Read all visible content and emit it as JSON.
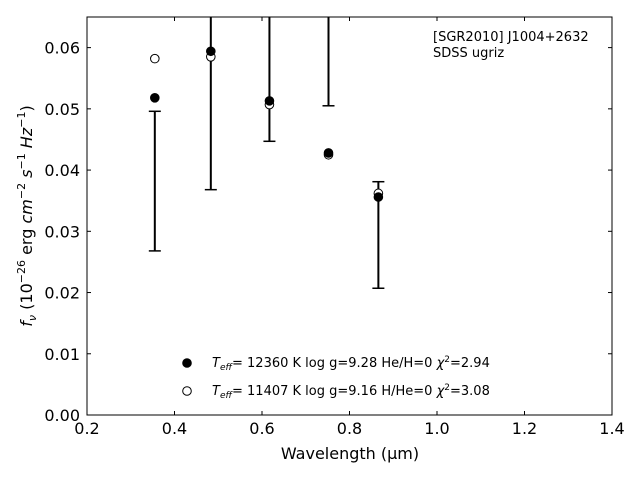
{
  "chart_data": {
    "type": "scatter",
    "title": "",
    "xlabel": "Wavelength (μm)",
    "ylabel": "f_ν (10^-26 erg cm^-2 s^-1 Hz^-1)",
    "xlim": [
      0.2,
      1.4
    ],
    "ylim": [
      0.0,
      0.065
    ],
    "x_ticks": [
      0.2,
      0.4,
      0.6,
      0.8,
      1.0,
      1.2,
      1.4
    ],
    "x_tick_labels": [
      "0.2",
      "0.4",
      "0.6",
      "0.8",
      "1.0",
      "1.2",
      "1.4"
    ],
    "y_ticks": [
      0.0,
      0.01,
      0.02,
      0.03,
      0.04,
      0.05,
      0.06
    ],
    "y_tick_labels": [
      "0.00",
      "0.01",
      "0.02",
      "0.03",
      "0.04",
      "0.05",
      "0.06"
    ],
    "grid": false,
    "annotation": {
      "line1": "[SGR2010] J1004+2632",
      "line2": "SDSS ugriz"
    },
    "observed": {
      "x": [
        0.355,
        0.483,
        0.617,
        0.752,
        0.866
      ],
      "y": [
        0.0382,
        0.0593,
        0.0608,
        0.065,
        0.0294
      ],
      "yerr": [
        0.0114,
        0.0225,
        0.0161,
        0.0145,
        0.0087
      ]
    },
    "series": [
      {
        "label_parts": [
          "T",
          "eff",
          "= 12360 K  log g=9.28  He/H=0  ",
          "χ",
          "2",
          "=2.94"
        ],
        "marker": "filled-circle",
        "x": [
          0.355,
          0.483,
          0.617,
          0.752,
          0.866
        ],
        "y": [
          0.0518,
          0.0594,
          0.0513,
          0.0428,
          0.0356
        ]
      },
      {
        "label_parts": [
          "T",
          "eff",
          "= 11407 K  log g=9.16  H/He=0  ",
          "χ",
          "2",
          "=3.08"
        ],
        "marker": "open-circle",
        "x": [
          0.355,
          0.483,
          0.617,
          0.752,
          0.866
        ],
        "y": [
          0.0582,
          0.0585,
          0.0507,
          0.0425,
          0.0362
        ]
      }
    ],
    "legend_placement": "bottom-center",
    "colors": {
      "marker": "#000000",
      "axes": "#000000",
      "background": "#ffffff"
    }
  }
}
